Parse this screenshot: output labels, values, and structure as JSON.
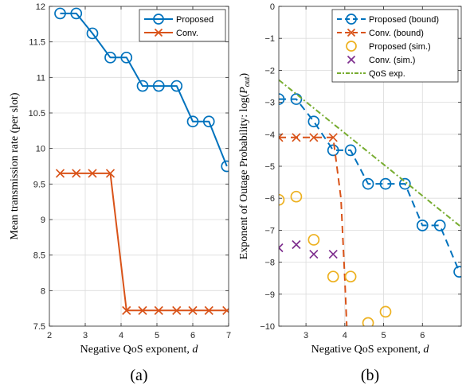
{
  "chart_data": [
    {
      "type": "line",
      "panel_label": "(a)",
      "xlabel": "Negative QoS exponent, ",
      "xlabel_var": "d",
      "ylabel": "Mean transmission rate (per slot)",
      "xlim": [
        2,
        7
      ],
      "ylim": [
        7.5,
        12
      ],
      "xticks": [
        2,
        3,
        4,
        5,
        6,
        7
      ],
      "yticks": [
        7.5,
        8,
        8.5,
        9,
        9.5,
        10,
        10.5,
        11,
        11.5,
        12
      ],
      "grid": true,
      "legend_position": "top-right",
      "series": [
        {
          "name": "Proposed",
          "color": "#0072BD",
          "line": "solid",
          "marker": "circle",
          "x": [
            2.3,
            2.75,
            3.2,
            3.7,
            4.15,
            4.6,
            5.05,
            5.55,
            6.0,
            6.45,
            6.95
          ],
          "y": [
            11.9,
            11.9,
            11.62,
            11.28,
            11.28,
            10.88,
            10.88,
            10.88,
            10.38,
            10.38,
            9.75
          ]
        },
        {
          "name": "Conv.",
          "color": "#D95319",
          "line": "solid",
          "marker": "x",
          "x": [
            2.3,
            2.75,
            3.2,
            3.7,
            4.15,
            4.6,
            5.05,
            5.55,
            6.0,
            6.45,
            6.95
          ],
          "y": [
            9.65,
            9.65,
            9.65,
            9.65,
            7.72,
            7.72,
            7.72,
            7.72,
            7.72,
            7.72,
            7.72
          ]
        }
      ]
    },
    {
      "type": "line",
      "panel_label": "(b)",
      "xlabel": "Negative QoS exponent, ",
      "xlabel_var": "d",
      "ylabel": "Exponent of Outage Probability: log(",
      "ylabel_var": "P",
      "ylabel_sub": "out",
      "ylabel_end": ")",
      "xlim": [
        2.3,
        7.0
      ],
      "ylim": [
        -10,
        0
      ],
      "xticks": [
        3,
        4,
        5,
        6
      ],
      "yticks": [
        -10,
        -9,
        -8,
        -7,
        -6,
        -5,
        -4,
        -3,
        -2,
        -1,
        0
      ],
      "grid": true,
      "legend_position": "top-right",
      "series": [
        {
          "name": "Proposed (bound)",
          "color": "#0072BD",
          "line": "dashed",
          "marker": "circle",
          "x": [
            2.3,
            2.75,
            3.2,
            3.7,
            4.15,
            4.6,
            5.05,
            5.55,
            6.0,
            6.45,
            6.95
          ],
          "y": [
            -2.9,
            -2.9,
            -3.6,
            -4.5,
            -4.5,
            -5.55,
            -5.55,
            -5.55,
            -6.85,
            -6.85,
            -8.3
          ]
        },
        {
          "name": "Conv. (bound)",
          "color": "#D95319",
          "line": "dashed",
          "marker": "x",
          "x": [
            2.3,
            2.75,
            3.2,
            3.7,
            3.9,
            4.0,
            4.05
          ],
          "y": [
            -4.1,
            -4.1,
            -4.1,
            -4.1,
            -6.0,
            -8.5,
            -10.0
          ],
          "marker_count": 4
        },
        {
          "name": "Proposed (sim.)",
          "color": "#EDB120",
          "line": "none",
          "marker": "circle",
          "x": [
            2.3,
            2.75,
            3.2,
            3.7,
            4.15,
            4.6,
            5.05
          ],
          "y": [
            -6.05,
            -5.95,
            -7.3,
            -8.45,
            -8.45,
            -9.9,
            -9.55
          ]
        },
        {
          "name": "Conv. (sim.)",
          "color": "#7E2F8E",
          "line": "none",
          "marker": "x",
          "x": [
            2.3,
            2.75,
            3.2,
            3.7
          ],
          "y": [
            -7.55,
            -7.45,
            -7.75,
            -7.75
          ]
        },
        {
          "name": "QoS exp.",
          "color": "#77AC30",
          "line": "dashdot",
          "marker": "none",
          "x": [
            2.3,
            7.0
          ],
          "y": [
            -2.3,
            -6.9
          ]
        }
      ]
    }
  ]
}
